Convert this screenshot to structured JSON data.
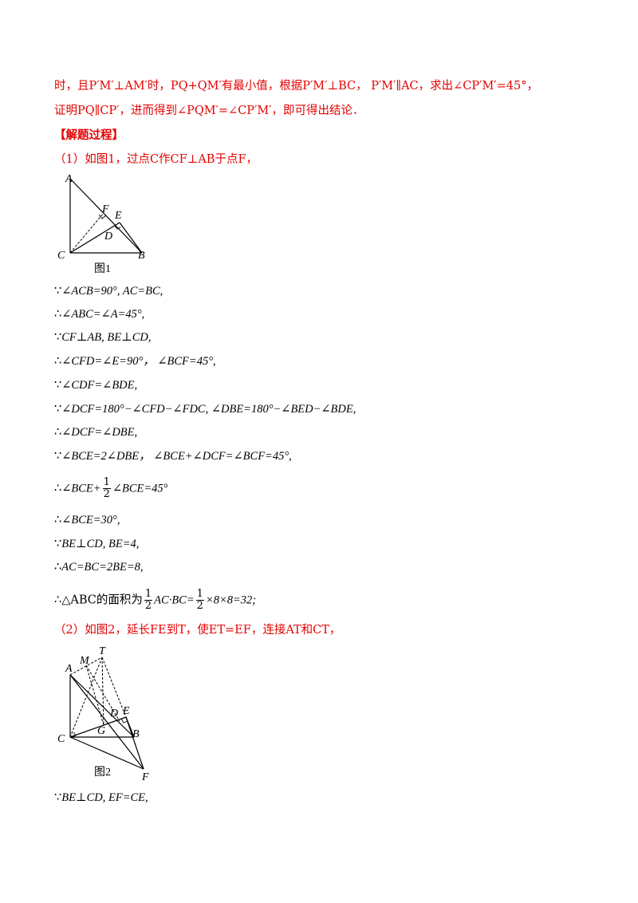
{
  "lines": {
    "l1": "时，且P′M′⊥AM′时，PQ+QM′有最小值，根据P′M′⊥BC， P′M′∥AC，求出∠CP′M′=45°，",
    "l2": "证明PQ∥CP′，进而得到∠PQM′=∠CP′M′，即可得出结论．",
    "l3": "【解题过程】",
    "l4": "（1）如图1，过点C作CF⊥AB于点F，",
    "s1_sym": "∵",
    "s1": "∠ACB=90°, AC=BC,",
    "s2_sym": "∴",
    "s2": "∠ABC=∠A=45°,",
    "s3_sym": "∵",
    "s3": "CF⊥AB, BE⊥CD,",
    "s4_sym": "∴",
    "s4": "∠CFD=∠E=90°， ∠BCF=45°,",
    "s5_sym": "∵",
    "s5": "∠CDF=∠BDE,",
    "s6_sym": "∵",
    "s6": "∠DCF=180°−∠CFD−∠FDC, ∠DBE=180°−∠BED−∠BDE,",
    "s7_sym": "∴",
    "s7": "∠DCF=∠DBE,",
    "s8_sym": "∵",
    "s8": "∠BCE=2∠DBE， ∠BCE+∠DCF=∠BCF=45°,",
    "s9_sym": "∴",
    "s9_a": "∠BCE+",
    "s9_num": "1",
    "s9_den": "2",
    "s9_b": "∠BCE=45°",
    "s10_sym": "∴",
    "s10": "∠BCE=30°,",
    "s11_sym": "∵",
    "s11": "BE⊥CD, BE=4,",
    "s12_sym": "∴",
    "s12": "AC=BC=2BE=8,",
    "s13_sym": "∴",
    "s13_a": "△ABC的面积为",
    "s13_num1": "1",
    "s13_den1": "2",
    "s13_b": "AC·BC=",
    "s13_num2": "1",
    "s13_den2": "2",
    "s13_c": "×8×8=32;",
    "l5": "（2）如图2，延长FE到T，使ET=EF，连接AT和CT，",
    "s14_sym": "∵",
    "s14": "BE⊥CD, EF=CE,"
  },
  "figure1": {
    "caption": "图1",
    "labels": {
      "A": "A",
      "B": "B",
      "C": "C",
      "D": "D",
      "E": "E",
      "F": "F"
    }
  },
  "figure2": {
    "caption": "图2",
    "labels": {
      "A": "A",
      "B": "B",
      "C": "C",
      "D": "D",
      "E": "E",
      "F": "F",
      "G": "G",
      "M": "M",
      "T": "T"
    }
  },
  "colors": {
    "text_red": "#e60000",
    "text_black": "#000000"
  }
}
